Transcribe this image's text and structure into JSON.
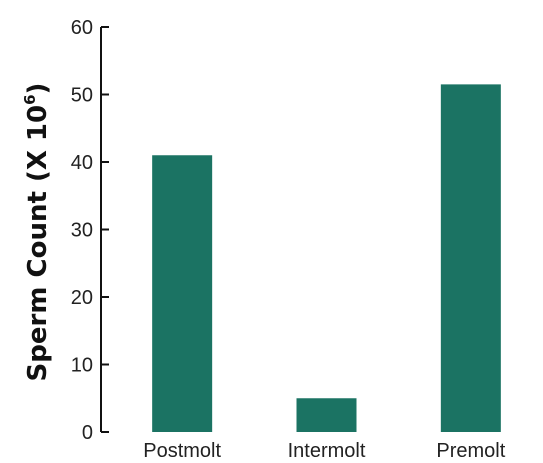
{
  "chart_data": {
    "type": "bar",
    "categories": [
      "Postmolt",
      "Intermolt",
      "Premolt"
    ],
    "values": [
      41,
      5,
      51.5
    ],
    "ylabel": "Sperm Count (X 10",
    "ylabel_superscript": "6",
    "ylabel_close": ")",
    "ylim": [
      0,
      60
    ],
    "yticks": [
      0,
      10,
      20,
      30,
      40,
      50,
      60
    ],
    "bar_color": "#1b7363",
    "grid": false
  }
}
